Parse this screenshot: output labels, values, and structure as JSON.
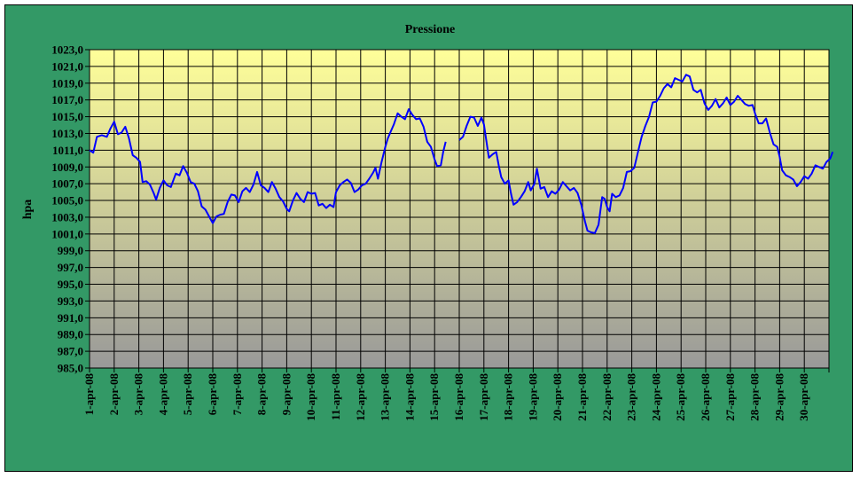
{
  "chart_data": {
    "type": "line",
    "title": "Pressione",
    "xlabel": "",
    "ylabel": "hpa",
    "ylim": [
      985,
      1023
    ],
    "y_ticks": [
      "1023,0",
      "1021,0",
      "1019,0",
      "1017,0",
      "1015,0",
      "1013,0",
      "1011,0",
      "1009,0",
      "1007,0",
      "1005,0",
      "1003,0",
      "1001,0",
      "999,0",
      "997,0",
      "995,0",
      "993,0",
      "991,0",
      "989,0",
      "987,0",
      "985,0"
    ],
    "x_categories": [
      "1-apr-08",
      "2-apr-08",
      "3-apr-08",
      "4-apr-08",
      "5-apr-08",
      "6-apr-08",
      "7-apr-08",
      "8-apr-08",
      "9-apr-08",
      "10-apr-08",
      "11-apr-08",
      "12-apr-08",
      "13-apr-08",
      "14-apr-08",
      "15-apr-08",
      "16-apr-08",
      "17-apr-08",
      "18-apr-08",
      "19-apr-08",
      "20-apr-08",
      "21-apr-08",
      "22-apr-08",
      "23-apr-08",
      "24-apr-08",
      "25-apr-08",
      "26-apr-08",
      "27-apr-08",
      "28-apr-08",
      "29-apr-08",
      "30-apr-08"
    ],
    "grid": true,
    "line_color": "#0000ff",
    "background_gradient": [
      "#ffff99",
      "#999999"
    ],
    "frame_color": "#339966",
    "series": [
      {
        "segments": [
          [
            [
              0.0,
              1011.0
            ],
            [
              0.15,
              1010.7
            ],
            [
              0.3,
              1012.6
            ],
            [
              0.5,
              1012.8
            ],
            [
              0.7,
              1012.6
            ],
            [
              0.85,
              1013.6
            ],
            [
              1.0,
              1014.4
            ],
            [
              1.15,
              1012.9
            ],
            [
              1.3,
              1013.1
            ],
            [
              1.45,
              1013.8
            ],
            [
              1.6,
              1012.4
            ],
            [
              1.75,
              1010.4
            ],
            [
              1.9,
              1010.1
            ],
            [
              2.05,
              1009.6
            ],
            [
              2.15,
              1007.2
            ],
            [
              2.3,
              1007.3
            ],
            [
              2.45,
              1006.9
            ],
            [
              2.6,
              1005.9
            ],
            [
              2.7,
              1005.1
            ],
            [
              2.85,
              1006.5
            ],
            [
              3.0,
              1007.4
            ],
            [
              3.15,
              1006.8
            ],
            [
              3.3,
              1006.6
            ],
            [
              3.5,
              1008.2
            ],
            [
              3.65,
              1008.0
            ],
            [
              3.8,
              1009.1
            ],
            [
              3.95,
              1008.3
            ],
            [
              4.1,
              1007.2
            ],
            [
              4.25,
              1007.0
            ],
            [
              4.4,
              1006.1
            ],
            [
              4.55,
              1004.3
            ],
            [
              4.7,
              1003.9
            ],
            [
              4.85,
              1003.1
            ],
            [
              5.0,
              1002.3
            ],
            [
              5.15,
              1003.1
            ],
            [
              5.3,
              1003.3
            ],
            [
              5.45,
              1003.4
            ],
            [
              5.6,
              1004.8
            ],
            [
              5.75,
              1005.7
            ],
            [
              5.9,
              1005.6
            ],
            [
              6.05,
              1004.8
            ],
            [
              6.2,
              1006.1
            ],
            [
              6.35,
              1006.5
            ],
            [
              6.5,
              1006.0
            ],
            [
              6.65,
              1006.9
            ],
            [
              6.8,
              1008.4
            ],
            [
              6.95,
              1006.8
            ],
            [
              7.1,
              1006.5
            ],
            [
              7.25,
              1006.0
            ],
            [
              7.4,
              1007.2
            ],
            [
              7.55,
              1006.4
            ],
            [
              7.7,
              1005.4
            ],
            [
              7.85,
              1004.9
            ],
            [
              8.0,
              1004.0
            ],
            [
              8.1,
              1003.7
            ],
            [
              8.25,
              1005.0
            ],
            [
              8.4,
              1005.9
            ],
            [
              8.55,
              1005.2
            ],
            [
              8.7,
              1004.8
            ],
            [
              8.85,
              1006.0
            ],
            [
              9.0,
              1005.8
            ],
            [
              9.15,
              1005.9
            ],
            [
              9.3,
              1004.4
            ],
            [
              9.45,
              1004.6
            ],
            [
              9.6,
              1004.1
            ],
            [
              9.75,
              1004.5
            ],
            [
              9.9,
              1004.2
            ],
            [
              10.0,
              1006.0
            ],
            [
              10.15,
              1006.8
            ],
            [
              10.3,
              1007.2
            ],
            [
              10.45,
              1007.5
            ],
            [
              10.6,
              1007.1
            ],
            [
              10.75,
              1006.0
            ],
            [
              10.9,
              1006.3
            ],
            [
              11.05,
              1006.8
            ],
            [
              11.2,
              1007.0
            ],
            [
              11.35,
              1007.6
            ],
            [
              11.5,
              1008.3
            ],
            [
              11.6,
              1008.9
            ],
            [
              11.7,
              1007.6
            ],
            [
              11.85,
              1009.6
            ],
            [
              12.0,
              1011.4
            ],
            [
              12.1,
              1012.4
            ],
            [
              12.2,
              1013.1
            ],
            [
              12.35,
              1014.1
            ],
            [
              12.5,
              1015.4
            ],
            [
              12.65,
              1015.0
            ],
            [
              12.8,
              1014.7
            ],
            [
              12.95,
              1015.9
            ],
            [
              13.1,
              1015.2
            ],
            [
              13.25,
              1014.7
            ],
            [
              13.4,
              1014.8
            ],
            [
              13.55,
              1013.8
            ],
            [
              13.7,
              1012.0
            ],
            [
              13.85,
              1011.4
            ],
            [
              14.0,
              1009.9
            ],
            [
              14.1,
              1009.1
            ],
            [
              14.25,
              1009.2
            ],
            [
              14.35,
              1010.8
            ],
            [
              14.45,
              1012.0
            ]
          ],
          [
            [
              15.0,
              1012.2
            ],
            [
              15.15,
              1012.6
            ],
            [
              15.3,
              1013.9
            ],
            [
              15.45,
              1015.0
            ],
            [
              15.6,
              1014.9
            ],
            [
              15.75,
              1013.9
            ],
            [
              15.9,
              1014.9
            ],
            [
              16.0,
              1014.1
            ],
            [
              16.1,
              1012.1
            ],
            [
              16.2,
              1010.1
            ],
            [
              16.35,
              1010.5
            ],
            [
              16.5,
              1010.8
            ],
            [
              16.6,
              1009.2
            ],
            [
              16.7,
              1007.8
            ],
            [
              16.85,
              1007.0
            ],
            [
              17.0,
              1007.4
            ],
            [
              17.1,
              1005.8
            ],
            [
              17.2,
              1004.5
            ],
            [
              17.35,
              1004.8
            ],
            [
              17.5,
              1005.4
            ],
            [
              17.65,
              1006.1
            ],
            [
              17.8,
              1007.2
            ],
            [
              17.9,
              1006.2
            ],
            [
              18.05,
              1007.0
            ],
            [
              18.15,
              1008.8
            ],
            [
              18.3,
              1006.4
            ],
            [
              18.45,
              1006.6
            ],
            [
              18.6,
              1005.4
            ],
            [
              18.75,
              1006.1
            ],
            [
              18.9,
              1005.8
            ],
            [
              19.05,
              1006.3
            ],
            [
              19.2,
              1007.2
            ],
            [
              19.35,
              1006.7
            ],
            [
              19.5,
              1006.2
            ],
            [
              19.65,
              1006.5
            ],
            [
              19.8,
              1005.9
            ],
            [
              19.95,
              1004.5
            ],
            [
              20.1,
              1002.5
            ],
            [
              20.2,
              1001.4
            ],
            [
              20.35,
              1001.2
            ],
            [
              20.5,
              1001.1
            ],
            [
              20.65,
              1002.1
            ],
            [
              20.8,
              1005.4
            ],
            [
              20.9,
              1005.2
            ],
            [
              21.0,
              1004.2
            ],
            [
              21.1,
              1003.7
            ],
            [
              21.2,
              1005.8
            ],
            [
              21.35,
              1005.4
            ],
            [
              21.5,
              1005.6
            ],
            [
              21.65,
              1006.5
            ],
            [
              21.8,
              1008.4
            ],
            [
              21.95,
              1008.5
            ],
            [
              22.1,
              1008.9
            ],
            [
              22.25,
              1010.8
            ],
            [
              22.4,
              1012.6
            ],
            [
              22.55,
              1013.9
            ],
            [
              22.7,
              1015.0
            ],
            [
              22.85,
              1016.7
            ],
            [
              23.0,
              1016.8
            ],
            [
              23.15,
              1017.5
            ],
            [
              23.3,
              1018.4
            ],
            [
              23.45,
              1018.9
            ],
            [
              23.6,
              1018.5
            ],
            [
              23.75,
              1019.6
            ],
            [
              23.9,
              1019.4
            ],
            [
              24.05,
              1019.2
            ],
            [
              24.2,
              1020.0
            ],
            [
              24.35,
              1019.8
            ],
            [
              24.5,
              1018.2
            ],
            [
              24.65,
              1017.9
            ],
            [
              24.8,
              1018.2
            ],
            [
              24.95,
              1016.6
            ],
            [
              25.1,
              1015.8
            ],
            [
              25.25,
              1016.3
            ],
            [
              25.4,
              1017.1
            ],
            [
              25.55,
              1016.1
            ],
            [
              25.7,
              1016.6
            ],
            [
              25.85,
              1017.3
            ],
            [
              26.0,
              1016.4
            ],
            [
              26.15,
              1016.8
            ],
            [
              26.3,
              1017.5
            ],
            [
              26.45,
              1017.0
            ],
            [
              26.6,
              1016.5
            ],
            [
              26.75,
              1016.3
            ],
            [
              26.9,
              1016.4
            ],
            [
              27.0,
              1015.4
            ],
            [
              27.15,
              1014.2
            ],
            [
              27.3,
              1014.2
            ],
            [
              27.45,
              1014.8
            ],
            [
              27.6,
              1013.1
            ],
            [
              27.75,
              1011.7
            ],
            [
              27.9,
              1011.4
            ],
            [
              28.0,
              1010.2
            ],
            [
              28.1,
              1008.6
            ],
            [
              28.25,
              1008.0
            ],
            [
              28.4,
              1007.8
            ],
            [
              28.55,
              1007.5
            ],
            [
              28.7,
              1006.7
            ],
            [
              28.85,
              1007.2
            ],
            [
              29.0,
              1007.9
            ],
            [
              29.15,
              1007.6
            ],
            [
              29.3,
              1008.2
            ],
            [
              29.45,
              1009.2
            ],
            [
              29.6,
              1009.0
            ],
            [
              29.75,
              1008.8
            ],
            [
              29.9,
              1009.6
            ],
            [
              30.05,
              1010.0
            ],
            [
              30.15,
              1010.8
            ]
          ]
        ]
      }
    ]
  }
}
